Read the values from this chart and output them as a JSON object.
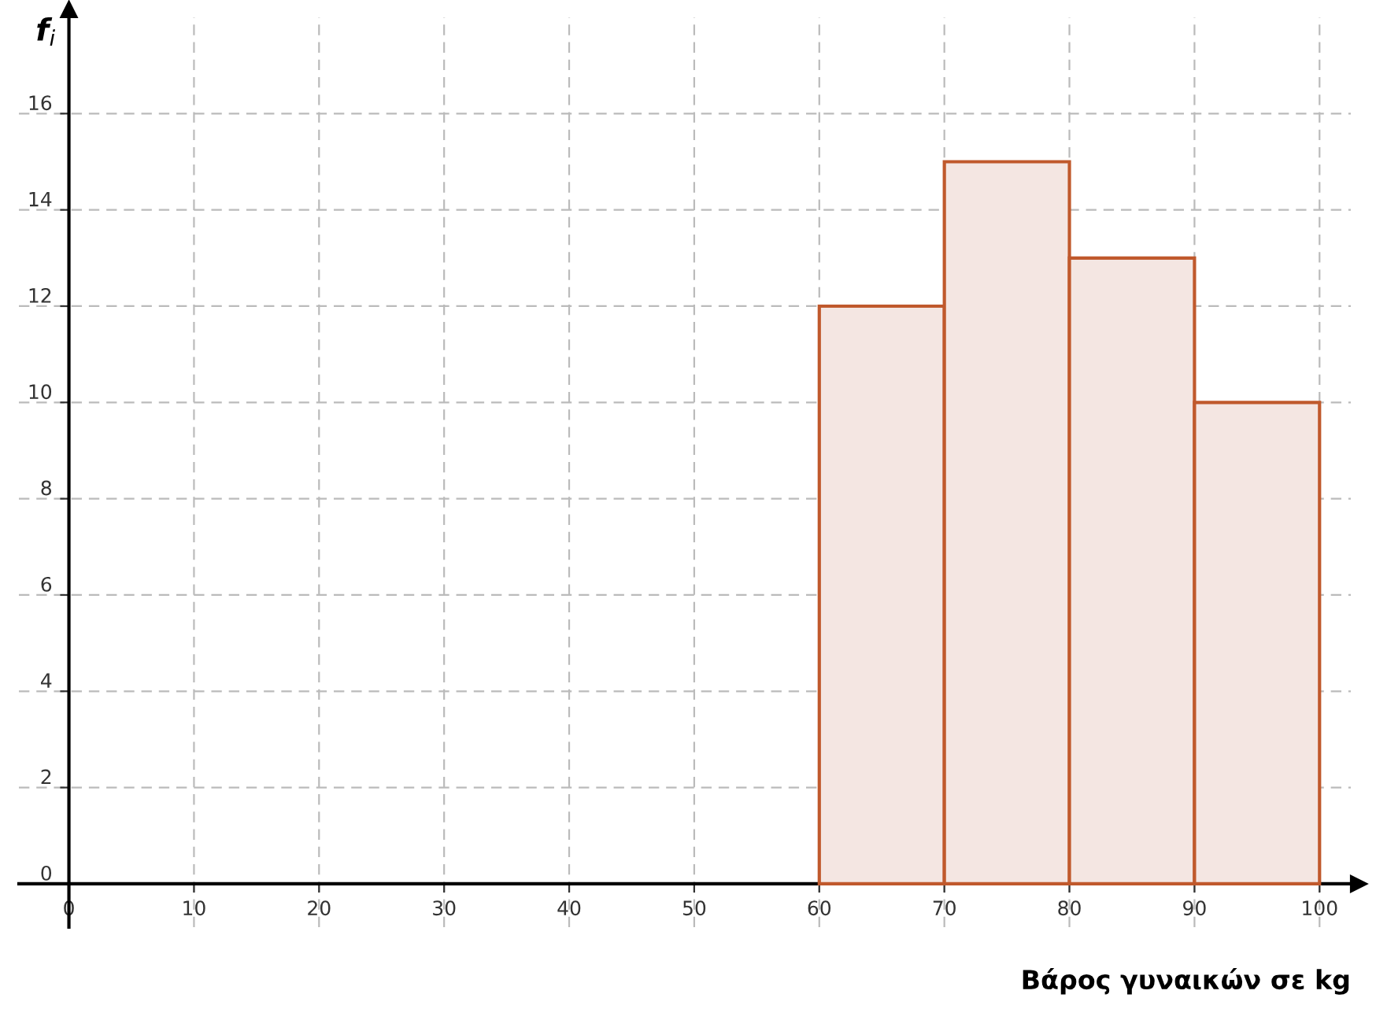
{
  "chart_data": {
    "type": "histogram",
    "xlabel": "Βάρος γυναικών σε kg",
    "ylabel": "f$_{i}$",
    "bins": [
      60,
      70,
      80,
      90,
      100
    ],
    "values": [
      12,
      15,
      13,
      10
    ],
    "color": "#f4e6e2",
    "xlim": [
      -4,
      102.5
    ],
    "ylim": [
      -0.9,
      18
    ],
    "xticks": [
      0,
      10,
      20,
      30,
      40,
      50,
      60,
      70,
      80,
      90,
      100
    ],
    "yticks": [
      0,
      2,
      4,
      6,
      8,
      10,
      12,
      14,
      16
    ],
    "grid": true
  }
}
